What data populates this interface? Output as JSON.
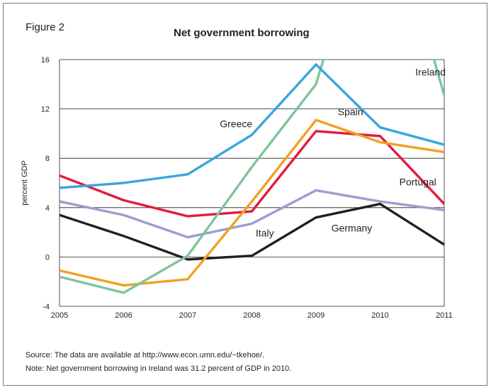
{
  "figure_label": "Figure 2",
  "notes": {
    "source": "Source: The data are available at http://www.econ.umn.edu/~tkehoe/.",
    "note": "Note: Net government borrowing in Ireland was 31.2 percent of GDP in 2010."
  },
  "chart_data": {
    "type": "line",
    "title": "Net government borrowing",
    "xlabel": "",
    "ylabel": "percent GDP",
    "x": [
      2005,
      2006,
      2007,
      2008,
      2009,
      2010,
      2011
    ],
    "xlim": [
      2005,
      2011
    ],
    "ylim": [
      -4,
      16
    ],
    "yticks": [
      -4,
      0,
      4,
      8,
      12,
      16
    ],
    "grid": "horizontal",
    "series": [
      {
        "name": "Greece",
        "color": "#3aa5dc",
        "values": [
          5.6,
          6.0,
          6.7,
          9.9,
          15.6,
          10.5,
          9.1
        ]
      },
      {
        "name": "Ireland",
        "color": "#7dc59c",
        "values": [
          -1.6,
          -2.9,
          0.1,
          7.3,
          14.0,
          31.2,
          13.1
        ]
      },
      {
        "name": "Spain",
        "color": "#f0a122",
        "values": [
          -1.1,
          -2.3,
          -1.8,
          4.5,
          11.1,
          9.3,
          8.5
        ]
      },
      {
        "name": "Portugal",
        "color": "#e11b3c",
        "values": [
          6.6,
          4.6,
          3.3,
          3.7,
          10.2,
          9.8,
          4.3
        ]
      },
      {
        "name": "Italy",
        "color": "#9a9fcf",
        "values": [
          4.5,
          3.4,
          1.6,
          2.7,
          5.4,
          4.5,
          3.8
        ]
      },
      {
        "name": "Germany",
        "color": "#231f20",
        "values": [
          3.4,
          1.7,
          -0.2,
          0.1,
          3.2,
          4.3,
          1.0
        ]
      }
    ]
  }
}
